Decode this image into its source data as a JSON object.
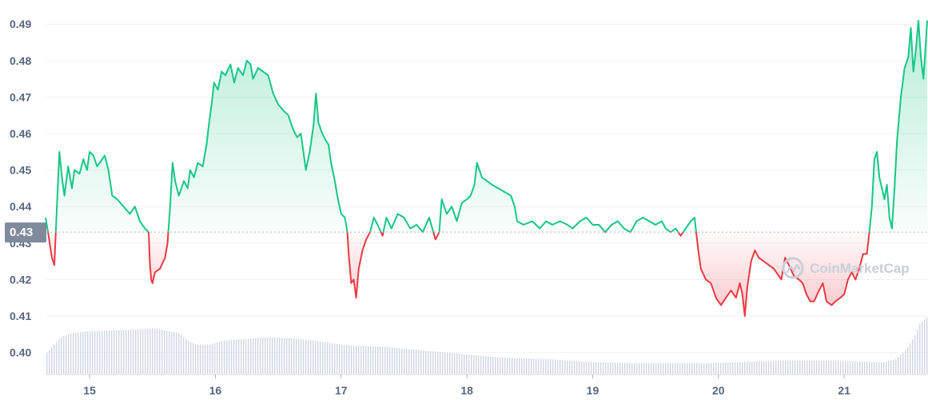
{
  "chart_data": {
    "type": "area",
    "reference_price": 0.433,
    "reference_label": "0.43",
    "ylim": [
      0.394,
      0.494
    ],
    "yticks": [
      {
        "value": 0.4,
        "label": "0.40"
      },
      {
        "value": 0.41,
        "label": "0.41"
      },
      {
        "value": 0.42,
        "label": "0.42"
      },
      {
        "value": 0.43,
        "label": "0.43"
      },
      {
        "value": 0.44,
        "label": "0.44"
      },
      {
        "value": 0.45,
        "label": "0.45"
      },
      {
        "value": 0.46,
        "label": "0.46"
      },
      {
        "value": 0.47,
        "label": "0.47"
      },
      {
        "value": 0.48,
        "label": "0.48"
      },
      {
        "value": 0.49,
        "label": "0.49"
      }
    ],
    "xlim": [
      14.65,
      21.66
    ],
    "xticks": [
      {
        "value": 15,
        "label": "15"
      },
      {
        "value": 16,
        "label": "16"
      },
      {
        "value": 17,
        "label": "17"
      },
      {
        "value": 18,
        "label": "18"
      },
      {
        "value": 19,
        "label": "19"
      },
      {
        "value": 20,
        "label": "20"
      },
      {
        "value": 21,
        "label": "21"
      }
    ],
    "price": [
      [
        14.65,
        0.437
      ],
      [
        14.67,
        0.433
      ],
      [
        14.7,
        0.426
      ],
      [
        14.72,
        0.424
      ],
      [
        14.74,
        0.44
      ],
      [
        14.76,
        0.455
      ],
      [
        14.78,
        0.448
      ],
      [
        14.8,
        0.443
      ],
      [
        14.83,
        0.451
      ],
      [
        14.86,
        0.445
      ],
      [
        14.88,
        0.45
      ],
      [
        14.92,
        0.449
      ],
      [
        14.95,
        0.453
      ],
      [
        14.98,
        0.45
      ],
      [
        15.0,
        0.455
      ],
      [
        15.03,
        0.454
      ],
      [
        15.06,
        0.451
      ],
      [
        15.1,
        0.453
      ],
      [
        15.12,
        0.454
      ],
      [
        15.15,
        0.45
      ],
      [
        15.18,
        0.443
      ],
      [
        15.22,
        0.442
      ],
      [
        15.27,
        0.44
      ],
      [
        15.32,
        0.438
      ],
      [
        15.36,
        0.44
      ],
      [
        15.4,
        0.436
      ],
      [
        15.44,
        0.434
      ],
      [
        15.47,
        0.433
      ],
      [
        15.48,
        0.424
      ],
      [
        15.49,
        0.42
      ],
      [
        15.5,
        0.419
      ],
      [
        15.52,
        0.422
      ],
      [
        15.56,
        0.423
      ],
      [
        15.6,
        0.426
      ],
      [
        15.62,
        0.43
      ],
      [
        15.64,
        0.44
      ],
      [
        15.66,
        0.452
      ],
      [
        15.68,
        0.447
      ],
      [
        15.71,
        0.443
      ],
      [
        15.75,
        0.447
      ],
      [
        15.78,
        0.445
      ],
      [
        15.8,
        0.45
      ],
      [
        15.83,
        0.448
      ],
      [
        15.86,
        0.452
      ],
      [
        15.9,
        0.451
      ],
      [
        15.93,
        0.457
      ],
      [
        15.95,
        0.463
      ],
      [
        15.97,
        0.468
      ],
      [
        15.99,
        0.474
      ],
      [
        16.02,
        0.472
      ],
      [
        16.05,
        0.477
      ],
      [
        16.08,
        0.476
      ],
      [
        16.12,
        0.479
      ],
      [
        16.15,
        0.474
      ],
      [
        16.18,
        0.478
      ],
      [
        16.22,
        0.476
      ],
      [
        16.25,
        0.48
      ],
      [
        16.28,
        0.479
      ],
      [
        16.3,
        0.475
      ],
      [
        16.34,
        0.478
      ],
      [
        16.38,
        0.477
      ],
      [
        16.42,
        0.476
      ],
      [
        16.46,
        0.471
      ],
      [
        16.5,
        0.468
      ],
      [
        16.55,
        0.466
      ],
      [
        16.58,
        0.465
      ],
      [
        16.62,
        0.461
      ],
      [
        16.65,
        0.459
      ],
      [
        16.68,
        0.46
      ],
      [
        16.7,
        0.455
      ],
      [
        16.72,
        0.45
      ],
      [
        16.75,
        0.455
      ],
      [
        16.78,
        0.462
      ],
      [
        16.8,
        0.471
      ],
      [
        16.82,
        0.463
      ],
      [
        16.85,
        0.46
      ],
      [
        16.88,
        0.458
      ],
      [
        16.9,
        0.457
      ],
      [
        16.92,
        0.452
      ],
      [
        16.95,
        0.447
      ],
      [
        16.97,
        0.443
      ],
      [
        17.0,
        0.438
      ],
      [
        17.03,
        0.437
      ],
      [
        17.05,
        0.433
      ],
      [
        17.06,
        0.427
      ],
      [
        17.08,
        0.419
      ],
      [
        17.1,
        0.42
      ],
      [
        17.12,
        0.415
      ],
      [
        17.14,
        0.423
      ],
      [
        17.17,
        0.428
      ],
      [
        17.2,
        0.431
      ],
      [
        17.23,
        0.433
      ],
      [
        17.26,
        0.437
      ],
      [
        17.29,
        0.435
      ],
      [
        17.33,
        0.432
      ],
      [
        17.36,
        0.437
      ],
      [
        17.4,
        0.434
      ],
      [
        17.45,
        0.438
      ],
      [
        17.5,
        0.437
      ],
      [
        17.55,
        0.434
      ],
      [
        17.6,
        0.435
      ],
      [
        17.65,
        0.433
      ],
      [
        17.7,
        0.437
      ],
      [
        17.75,
        0.431
      ],
      [
        17.78,
        0.433
      ],
      [
        17.8,
        0.442
      ],
      [
        17.84,
        0.438
      ],
      [
        17.88,
        0.44
      ],
      [
        17.92,
        0.436
      ],
      [
        17.96,
        0.441
      ],
      [
        18.0,
        0.442
      ],
      [
        18.03,
        0.443
      ],
      [
        18.06,
        0.446
      ],
      [
        18.08,
        0.452
      ],
      [
        18.12,
        0.448
      ],
      [
        18.16,
        0.447
      ],
      [
        18.2,
        0.446
      ],
      [
        18.25,
        0.445
      ],
      [
        18.3,
        0.444
      ],
      [
        18.35,
        0.443
      ],
      [
        18.38,
        0.44
      ],
      [
        18.4,
        0.436
      ],
      [
        18.45,
        0.435
      ],
      [
        18.52,
        0.436
      ],
      [
        18.58,
        0.434
      ],
      [
        18.63,
        0.436
      ],
      [
        18.68,
        0.435
      ],
      [
        18.74,
        0.436
      ],
      [
        18.8,
        0.435
      ],
      [
        18.84,
        0.434
      ],
      [
        18.9,
        0.436
      ],
      [
        18.95,
        0.437
      ],
      [
        19.0,
        0.435
      ],
      [
        19.05,
        0.435
      ],
      [
        19.1,
        0.433
      ],
      [
        19.15,
        0.435
      ],
      [
        19.2,
        0.436
      ],
      [
        19.25,
        0.434
      ],
      [
        19.3,
        0.433
      ],
      [
        19.35,
        0.436
      ],
      [
        19.4,
        0.437
      ],
      [
        19.45,
        0.436
      ],
      [
        19.5,
        0.435
      ],
      [
        19.55,
        0.436
      ],
      [
        19.58,
        0.434
      ],
      [
        19.62,
        0.433
      ],
      [
        19.66,
        0.434
      ],
      [
        19.7,
        0.432
      ],
      [
        19.74,
        0.434
      ],
      [
        19.78,
        0.436
      ],
      [
        19.81,
        0.437
      ],
      [
        19.84,
        0.428
      ],
      [
        19.86,
        0.423
      ],
      [
        19.9,
        0.42
      ],
      [
        19.94,
        0.419
      ],
      [
        19.98,
        0.415
      ],
      [
        20.02,
        0.413
      ],
      [
        20.06,
        0.415
      ],
      [
        20.1,
        0.417
      ],
      [
        20.14,
        0.415
      ],
      [
        20.17,
        0.419
      ],
      [
        20.19,
        0.416
      ],
      [
        20.21,
        0.41
      ],
      [
        20.23,
        0.418
      ],
      [
        20.26,
        0.425
      ],
      [
        20.29,
        0.428
      ],
      [
        20.32,
        0.426
      ],
      [
        20.36,
        0.425
      ],
      [
        20.4,
        0.424
      ],
      [
        20.44,
        0.423
      ],
      [
        20.48,
        0.421
      ],
      [
        20.5,
        0.42
      ],
      [
        20.53,
        0.426
      ],
      [
        20.56,
        0.424
      ],
      [
        20.6,
        0.421
      ],
      [
        20.64,
        0.42
      ],
      [
        20.67,
        0.419
      ],
      [
        20.7,
        0.416
      ],
      [
        20.73,
        0.414
      ],
      [
        20.76,
        0.414
      ],
      [
        20.8,
        0.417
      ],
      [
        20.83,
        0.419
      ],
      [
        20.86,
        0.414
      ],
      [
        20.9,
        0.413
      ],
      [
        20.93,
        0.414
      ],
      [
        20.97,
        0.415
      ],
      [
        21.0,
        0.416
      ],
      [
        21.03,
        0.42
      ],
      [
        21.06,
        0.422
      ],
      [
        21.09,
        0.42
      ],
      [
        21.12,
        0.423
      ],
      [
        21.15,
        0.427
      ],
      [
        21.18,
        0.427
      ],
      [
        21.2,
        0.433
      ],
      [
        21.22,
        0.44
      ],
      [
        21.24,
        0.453
      ],
      [
        21.26,
        0.455
      ],
      [
        21.28,
        0.448
      ],
      [
        21.3,
        0.445
      ],
      [
        21.32,
        0.442
      ],
      [
        21.34,
        0.446
      ],
      [
        21.36,
        0.437
      ],
      [
        21.38,
        0.434
      ],
      [
        21.4,
        0.445
      ],
      [
        21.42,
        0.458
      ],
      [
        21.45,
        0.47
      ],
      [
        21.48,
        0.478
      ],
      [
        21.51,
        0.481
      ],
      [
        21.53,
        0.489
      ],
      [
        21.55,
        0.477
      ],
      [
        21.57,
        0.483
      ],
      [
        21.59,
        0.491
      ],
      [
        21.61,
        0.481
      ],
      [
        21.63,
        0.475
      ],
      [
        21.66,
        0.491
      ]
    ],
    "volume": [
      [
        14.65,
        0.22
      ],
      [
        14.7,
        0.3
      ],
      [
        14.75,
        0.38
      ],
      [
        14.8,
        0.42
      ],
      [
        14.85,
        0.44
      ],
      [
        14.95,
        0.46
      ],
      [
        15.1,
        0.47
      ],
      [
        15.3,
        0.48
      ],
      [
        15.45,
        0.49
      ],
      [
        15.5,
        0.5
      ],
      [
        15.6,
        0.47
      ],
      [
        15.7,
        0.45
      ],
      [
        15.78,
        0.36
      ],
      [
        15.85,
        0.32
      ],
      [
        15.95,
        0.32
      ],
      [
        16.05,
        0.36
      ],
      [
        16.2,
        0.38
      ],
      [
        16.4,
        0.4
      ],
      [
        16.6,
        0.39
      ],
      [
        16.8,
        0.36
      ],
      [
        16.95,
        0.33
      ],
      [
        17.1,
        0.31
      ],
      [
        17.3,
        0.3
      ],
      [
        17.5,
        0.28
      ],
      [
        17.7,
        0.25
      ],
      [
        17.9,
        0.23
      ],
      [
        18.1,
        0.2
      ],
      [
        18.3,
        0.18
      ],
      [
        18.5,
        0.17
      ],
      [
        18.7,
        0.16
      ],
      [
        18.9,
        0.14
      ],
      [
        19.1,
        0.13
      ],
      [
        19.4,
        0.12
      ],
      [
        19.7,
        0.12
      ],
      [
        19.9,
        0.12
      ],
      [
        20.1,
        0.13
      ],
      [
        20.3,
        0.14
      ],
      [
        20.5,
        0.15
      ],
      [
        20.7,
        0.15
      ],
      [
        20.9,
        0.15
      ],
      [
        21.1,
        0.14
      ],
      [
        21.3,
        0.13
      ],
      [
        21.4,
        0.16
      ],
      [
        21.48,
        0.25
      ],
      [
        21.55,
        0.4
      ],
      [
        21.6,
        0.55
      ],
      [
        21.66,
        0.62
      ]
    ],
    "volume_max": 0.62,
    "up_color": "#16c784",
    "down_color": "#ea3943",
    "volume_color": "#cfd6e4",
    "watermark": "CoinMarketCap",
    "grid": "horizontal"
  }
}
